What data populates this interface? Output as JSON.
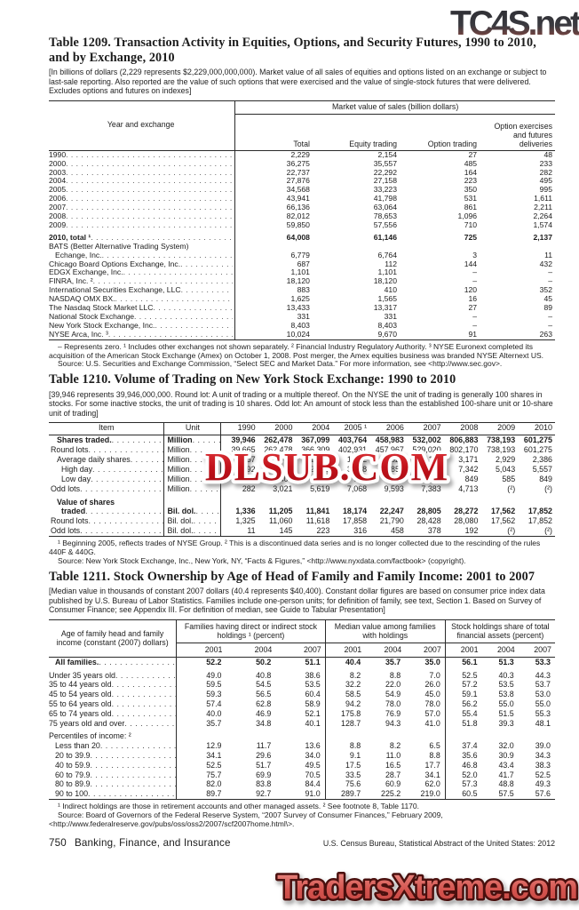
{
  "watermarks": {
    "top": "TC4S.net",
    "middle": "DLSUB.COM",
    "bottom": "TradersXtreme.com"
  },
  "t1209": {
    "title": "Table 1209. Transaction Activity in Equities, Options, and Security Futures, 1990 to 2010, and by Exchange, 2010",
    "bracket_note": "[In billions of dollars (2,229 represents $2,229,000,000,000). Market value of all sales of equities and options listed on an exchange or subject to last-sale reporting. Also reported are the value of such options that were exercised and the value of single-stock futures that were delivered. Excludes options and futures on indexes]",
    "stub_header": "Year and exchange",
    "spanner": "Market value of sales (billion dollars)",
    "columns": [
      "Total",
      "Equity trading",
      "Option trading",
      "Option exercises and futures deliveries"
    ],
    "rows": [
      {
        "label": "1990",
        "values": [
          "2,229",
          "2,154",
          "27",
          "48"
        ]
      },
      {
        "label": "2000",
        "values": [
          "36,275",
          "35,557",
          "485",
          "233"
        ]
      },
      {
        "label": "2003",
        "values": [
          "22,737",
          "22,292",
          "164",
          "282"
        ]
      },
      {
        "label": "2004",
        "values": [
          "27,876",
          "27,158",
          "223",
          "495"
        ]
      },
      {
        "label": "2005",
        "values": [
          "34,568",
          "33,223",
          "350",
          "995"
        ]
      },
      {
        "label": "2006",
        "values": [
          "43,941",
          "41,798",
          "531",
          "1,611"
        ]
      },
      {
        "label": "2007",
        "values": [
          "66,136",
          "63,064",
          "861",
          "2,211"
        ]
      },
      {
        "label": "2008",
        "values": [
          "82,012",
          "78,653",
          "1,096",
          "2,264"
        ]
      },
      {
        "label": "2009",
        "values": [
          "59,850",
          "57,556",
          "710",
          "1,574"
        ]
      },
      {
        "label": "2010, total ¹",
        "bold": true,
        "gap": true,
        "values": [
          "64,008",
          "61,146",
          "725",
          "2,137"
        ]
      },
      {
        "label": "BATS (Better Alternative Trading System)",
        "nd": true,
        "values": [
          "",
          "",
          "",
          ""
        ]
      },
      {
        "label": "Echange, Inc.",
        "ind": 1,
        "values": [
          "6,779",
          "6,764",
          "3",
          "11"
        ]
      },
      {
        "label": "Chicago Board Options Exchange, Inc.",
        "values": [
          "687",
          "112",
          "144",
          "432"
        ]
      },
      {
        "label": "EDGX Exchange, Inc.",
        "values": [
          "1,101",
          "1,101",
          "–",
          "–"
        ]
      },
      {
        "label": "FINRA, Inc. ²",
        "values": [
          "18,120",
          "18,120",
          "–",
          "–"
        ]
      },
      {
        "label": "International Securities Exchange, LLC",
        "values": [
          "883",
          "410",
          "120",
          "352"
        ]
      },
      {
        "label": "NASDAQ OMX BX.",
        "values": [
          "1,625",
          "1,565",
          "16",
          "45"
        ]
      },
      {
        "label": "The Nasdaq Stock Market LLC",
        "values": [
          "13,433",
          "13,317",
          "27",
          "89"
        ]
      },
      {
        "label": "National Stock Exchange",
        "values": [
          "331",
          "331",
          "–",
          "–"
        ]
      },
      {
        "label": "New York Stock Exchange, Inc.",
        "values": [
          "8,403",
          "8,403",
          "–",
          "–"
        ]
      },
      {
        "label": "NYSE Arca, Inc. ³",
        "values": [
          "10,024",
          "9,670",
          "91",
          "263"
        ]
      }
    ],
    "footnote": "– Represents zero. ¹ Includes other exchanges not shown separately. ² Financial Industry Regulatory Authority. ³ NYSE Euronext completed its acquisition of the American Stock Exchange (Amex) on October 1, 2008. Post merger, the Amex equities business was branded NYSE Alternext US.",
    "source": "Source: U.S. Securities and Exchange Commission, “Select SEC and Market Data.” For more information, see <http://www.sec.gov>."
  },
  "t1210": {
    "title": "Table 1210. Volume of Trading on New York Stock Exchange: 1990 to 2010",
    "bracket_note": "[39,946 represents 39,946,000,000. Round lot: A unit of trading or a multiple thereof. On the NYSE the unit of trading is generally 100 shares in stocks. For some inactive stocks, the unit of trading is 10 shares. Odd lot: An amount of stock less than the established 100-share unit or 10-share unit of trading]",
    "columns": [
      "Item",
      "Unit",
      "1990",
      "2000",
      "2004",
      "2005 ¹",
      "2006",
      "2007",
      "2008",
      "2009",
      "2010"
    ],
    "rows": [
      {
        "label": "Shares traded.",
        "bold": true,
        "ind": 1,
        "unit": "Million",
        "values": [
          "39,946",
          "262,478",
          "367,099",
          "403,764",
          "458,983",
          "532,002",
          "806,883",
          "738,193",
          "601,275"
        ]
      },
      {
        "label": "Round lots",
        "unit": "Million",
        "values": [
          "39,665",
          "262,478",
          "366,309",
          "402,931",
          "457,967",
          "529,020",
          "802,170",
          "738,193",
          "601,275"
        ]
      },
      {
        "label": "Average daily shares",
        "ind": 1,
        "unit": "Million",
        "values": [
          "157",
          "1,042",
          "1,456",
          "1,602",
          "1,827",
          "2,115",
          "3,171",
          "2,929",
          "2,386"
        ]
      },
      {
        "label": "High day",
        "ind": 2,
        "unit": "Million",
        "values": [
          "292",
          "1,561",
          "2,690",
          "3,628",
          "3,853",
          "5,505",
          "7,342",
          "5,043",
          "5,557"
        ]
      },
      {
        "label": "Low day",
        "ind": 2,
        "unit": "Million",
        "values": [
          "57",
          "403",
          "509",
          "694",
          "797",
          "917",
          "849",
          "585",
          "849"
        ]
      },
      {
        "label": "Odd lots",
        "unit": "Million",
        "values": [
          "282",
          "3,021",
          "5,619",
          "7,068",
          "9,593",
          "7,383",
          "4,713",
          "(²)",
          "(²)"
        ]
      },
      {
        "label": "Value of shares",
        "bold": true,
        "gap": true,
        "nd": true,
        "ind": 1,
        "unit": "",
        "values": [
          "",
          "",
          "",
          "",
          "",
          "",
          "",
          "",
          ""
        ]
      },
      {
        "label": "traded",
        "bold": true,
        "ind": 2,
        "unit": "Bil. dol.",
        "values": [
          "1,336",
          "11,205",
          "11,841",
          "18,174",
          "22,247",
          "28,805",
          "28,272",
          "17,562",
          "17,852"
        ]
      },
      {
        "label": "Round lots",
        "unit": "Bil. dol.",
        "values": [
          "1,325",
          "11,060",
          "11,618",
          "17,858",
          "21,790",
          "28,428",
          "28,080",
          "17,562",
          "17,852"
        ]
      },
      {
        "label": "Odd lots",
        "unit": "Bil. dol.",
        "values": [
          "11",
          "145",
          "223",
          "316",
          "458",
          "378",
          "192",
          "(²)",
          "(²)"
        ]
      }
    ],
    "footnote": "¹ Beginning 2005, reflects trades of NYSE Group. ² This is a discontinued data series and is no longer collected due to the rescinding of the rules 440F & 440G.",
    "source": "Source: New York Stock Exchange, Inc., New York, NY, “Facts & Figures,” <http://www.nyxdata.com/factbook> (copyright)."
  },
  "t1211": {
    "title": "Table 1211. Stock Ownership by Age of Head of Family and Family Income: 2001 to 2007",
    "bracket_note": "[Median value in thousands of constant 2007 dollars (40.4 represents $40,400). Constant dollar figures are based on consumer price index data published by U.S. Bureau of Labor Statistics. Families include one-person units; for definition of family, see text, Section 1. Based on Survey of Consumer Finance; see Appendix III. For definition of median, see Guide to Tabular Presentation]",
    "stub_header": "Age of family head and family income (constant (2007) dollars)",
    "groups": [
      {
        "label": "Families having direct or indirect stock holdings ¹ (percent)",
        "years": [
          "2001",
          "2004",
          "2007"
        ]
      },
      {
        "label": "Median value among families with holdings",
        "years": [
          "2001",
          "2004",
          "2007"
        ]
      },
      {
        "label": "Stock holdings share of total financial assets (percent)",
        "years": [
          "2001",
          "2004",
          "2007"
        ]
      }
    ],
    "rows": [
      {
        "label": "All families.",
        "bold": true,
        "ind": 1,
        "values": [
          "52.2",
          "50.2",
          "51.1",
          "40.4",
          "35.7",
          "35.0",
          "56.1",
          "51.3",
          "53.3"
        ]
      },
      {
        "label": "Under 35 years old",
        "gap": true,
        "values": [
          "49.0",
          "40.8",
          "38.6",
          "8.2",
          "8.8",
          "7.0",
          "52.5",
          "40.3",
          "44.3"
        ]
      },
      {
        "label": "35 to 44 years old",
        "values": [
          "59.5",
          "54.5",
          "53.5",
          "32.2",
          "22.0",
          "26.0",
          "57.2",
          "53.5",
          "53.7"
        ]
      },
      {
        "label": "45 to 54 years old",
        "values": [
          "59.3",
          "56.5",
          "60.4",
          "58.5",
          "54.9",
          "45.0",
          "59.1",
          "53.8",
          "53.0"
        ]
      },
      {
        "label": "55 to 64 years old",
        "values": [
          "57.4",
          "62.8",
          "58.9",
          "94.2",
          "78.0",
          "78.0",
          "56.2",
          "55.0",
          "55.0"
        ]
      },
      {
        "label": "65 to 74 years old",
        "values": [
          "40.0",
          "46.9",
          "52.1",
          "175.8",
          "76.9",
          "57.0",
          "55.4",
          "51.5",
          "55.3"
        ]
      },
      {
        "label": "75 years old and over",
        "values": [
          "35.7",
          "34.8",
          "40.1",
          "128.7",
          "94.3",
          "41.0",
          "51.8",
          "39.3",
          "48.1"
        ]
      },
      {
        "label": "Percentiles of income: ²",
        "gap": true,
        "nd": true,
        "values": [
          "",
          "",
          "",
          "",
          "",
          "",
          "",
          "",
          ""
        ]
      },
      {
        "label": "Less than 20",
        "ind": 1,
        "values": [
          "12.9",
          "11.7",
          "13.6",
          "8.8",
          "8.2",
          "6.5",
          "37.4",
          "32.0",
          "39.0"
        ]
      },
      {
        "label": "20 to 39.9",
        "ind": 1,
        "values": [
          "34.1",
          "29.6",
          "34.0",
          "9.1",
          "11.0",
          "8.8",
          "35.6",
          "30.9",
          "34.3"
        ]
      },
      {
        "label": "40 to 59.9",
        "ind": 1,
        "values": [
          "52.5",
          "51.7",
          "49.5",
          "17.5",
          "16.5",
          "17.7",
          "46.8",
          "43.4",
          "38.3"
        ]
      },
      {
        "label": "60 to 79.9",
        "ind": 1,
        "values": [
          "75.7",
          "69.9",
          "70.5",
          "33.5",
          "28.7",
          "34.1",
          "52.0",
          "41.7",
          "52.5"
        ]
      },
      {
        "label": "80 to 89.9",
        "ind": 1,
        "values": [
          "82.0",
          "83.8",
          "84.4",
          "75.6",
          "60.9",
          "62.0",
          "57.3",
          "48.8",
          "49.3"
        ]
      },
      {
        "label": "90 to 100",
        "ind": 1,
        "values": [
          "89.7",
          "92.7",
          "91.0",
          "289.7",
          "225.2",
          "219.0",
          "60.5",
          "57.5",
          "57.6"
        ]
      }
    ],
    "footnote": "¹ Indirect holdings are those in retirement accounts and other managed assets. ² See footnote 8, Table 1170.",
    "source": "Source: Board of Governors of the Federal Reserve System, “2007 Survey of Consumer Finances,” February 2009, <http://www.federalreserve.gov/pubs/oss/oss2/2007/scf2007home.html\\>."
  },
  "footer": {
    "page_number": "750",
    "section": "Banking, Finance, and Insurance",
    "source_line": "U.S. Census Bureau, Statistical Abstract of the United States: 2012"
  }
}
